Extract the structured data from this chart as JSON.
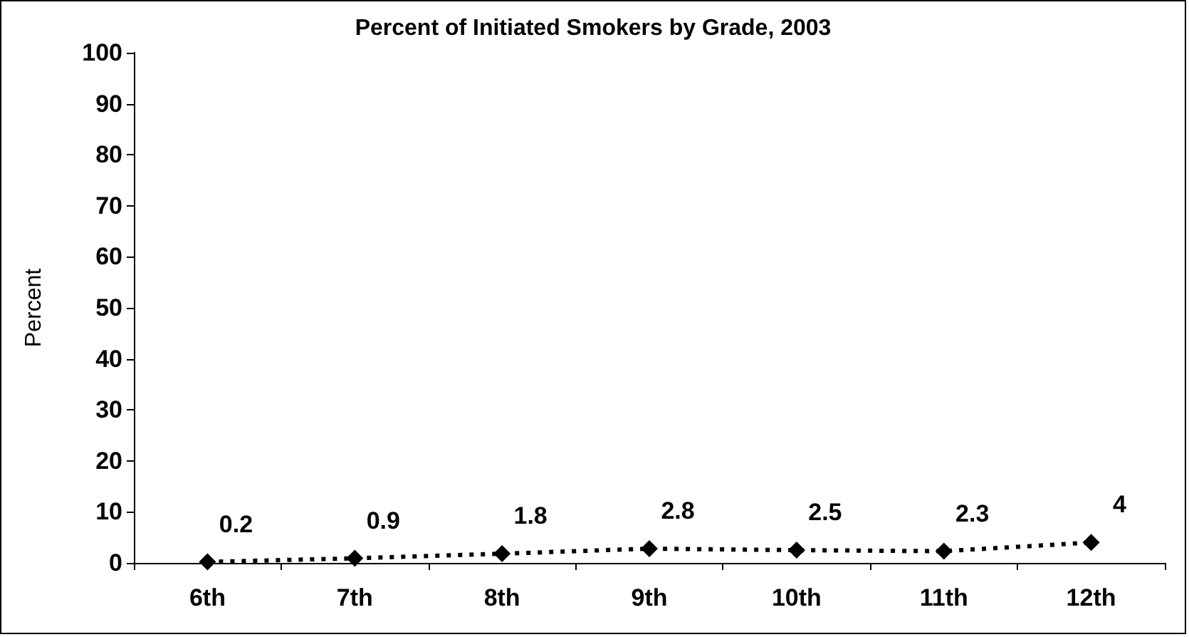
{
  "chart_data": {
    "type": "line",
    "title": "Percent of Initiated Smokers by Grade, 2003",
    "ylabel": "Percent",
    "categories": [
      "6th",
      "7th",
      "8th",
      "9th",
      "10th",
      "11th",
      "12th"
    ],
    "series": [
      {
        "color": "#000000",
        "values": [
          0.2,
          0.9,
          1.8,
          2.8,
          2.5,
          2.3,
          4
        ]
      }
    ],
    "ylim": [
      0,
      100
    ],
    "yticks": [
      0,
      10,
      20,
      30,
      40,
      50,
      60,
      70,
      80,
      90,
      100
    ],
    "data_labels": true,
    "grid": false,
    "marker": "diamond",
    "line_style": "dotted"
  }
}
